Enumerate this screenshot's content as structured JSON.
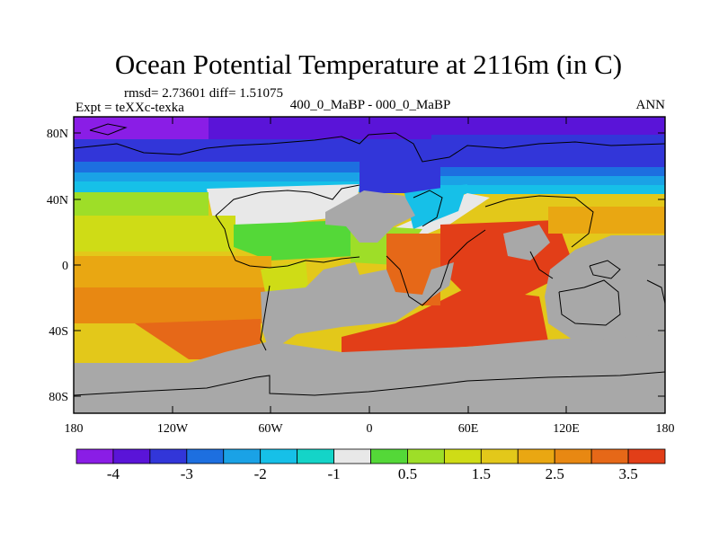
{
  "title": "Ocean Potential Temperature at 2116m (in C)",
  "stats": "rmsd= 2.73601 diff= 1.51075",
  "left_label": "Expt = teXXc-texka",
  "center_label": "400_0_MaBP - 000_0_MaBP",
  "right_label": "ANN",
  "lat_ticks": [
    "80N",
    "40N",
    "0",
    "40S",
    "80S"
  ],
  "lon_ticks": [
    "180",
    "120W",
    "60W",
    "0",
    "60E",
    "120E",
    "180"
  ],
  "colorbar": {
    "colors": [
      "#8a1de6",
      "#5a14d8",
      "#3236d9",
      "#1d6fe0",
      "#1aa2e6",
      "#16c0e8",
      "#14d4c8",
      "#e8e8e8",
      "#54d838",
      "#9ede28",
      "#cfdc16",
      "#e3c81a",
      "#e9a712",
      "#e88812",
      "#e66818",
      "#e23e18"
    ],
    "labels": [
      {
        "after_box": 1,
        "text": "-4"
      },
      {
        "after_box": 3,
        "text": "-3"
      },
      {
        "after_box": 5,
        "text": "-2"
      },
      {
        "after_box": 7,
        "text": "-1"
      },
      {
        "after_box": 9,
        "text": "0.5"
      },
      {
        "after_box": 11,
        "text": "1.5"
      },
      {
        "after_box": 13,
        "text": "2.5"
      },
      {
        "after_box": 15,
        "text": "3.5"
      }
    ]
  },
  "land_color": "#a8a8a8"
}
